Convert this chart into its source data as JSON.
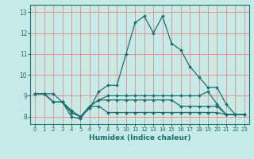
{
  "title": "",
  "xlabel": "Humidex (Indice chaleur)",
  "bg_color": "#c8eae6",
  "grid_color_v": "#e88888",
  "grid_color_h": "#e88888",
  "line_color": "#1a7070",
  "xlim": [
    -0.5,
    23.5
  ],
  "ylim": [
    7.65,
    13.35
  ],
  "yticks": [
    8,
    9,
    10,
    11,
    12,
    13
  ],
  "xticks": [
    0,
    1,
    2,
    3,
    4,
    5,
    6,
    7,
    8,
    9,
    10,
    11,
    12,
    13,
    14,
    15,
    16,
    17,
    18,
    19,
    20,
    21,
    22,
    23
  ],
  "series": [
    [
      9.1,
      9.1,
      9.1,
      8.7,
      8.3,
      8.0,
      8.4,
      9.2,
      9.5,
      9.5,
      11.0,
      12.5,
      12.8,
      12.0,
      12.8,
      11.5,
      11.2,
      10.4,
      9.9,
      9.4,
      9.4,
      8.6,
      8.1,
      8.1
    ],
    [
      9.1,
      9.1,
      8.7,
      8.7,
      8.0,
      7.9,
      8.5,
      8.8,
      9.0,
      9.0,
      9.0,
      9.0,
      9.0,
      9.0,
      9.0,
      9.0,
      9.0,
      9.0,
      9.0,
      9.2,
      8.6,
      8.1,
      8.1,
      8.1
    ],
    [
      9.1,
      9.1,
      8.7,
      8.7,
      8.2,
      8.0,
      8.5,
      8.8,
      8.8,
      8.8,
      8.8,
      8.8,
      8.8,
      8.8,
      8.8,
      8.8,
      8.5,
      8.5,
      8.5,
      8.5,
      8.5,
      8.1,
      8.1,
      8.1
    ],
    [
      9.1,
      9.1,
      8.7,
      8.7,
      8.2,
      8.0,
      8.5,
      8.5,
      8.2,
      8.2,
      8.2,
      8.2,
      8.2,
      8.2,
      8.2,
      8.2,
      8.2,
      8.2,
      8.2,
      8.2,
      8.2,
      8.1,
      8.1,
      8.1
    ]
  ]
}
